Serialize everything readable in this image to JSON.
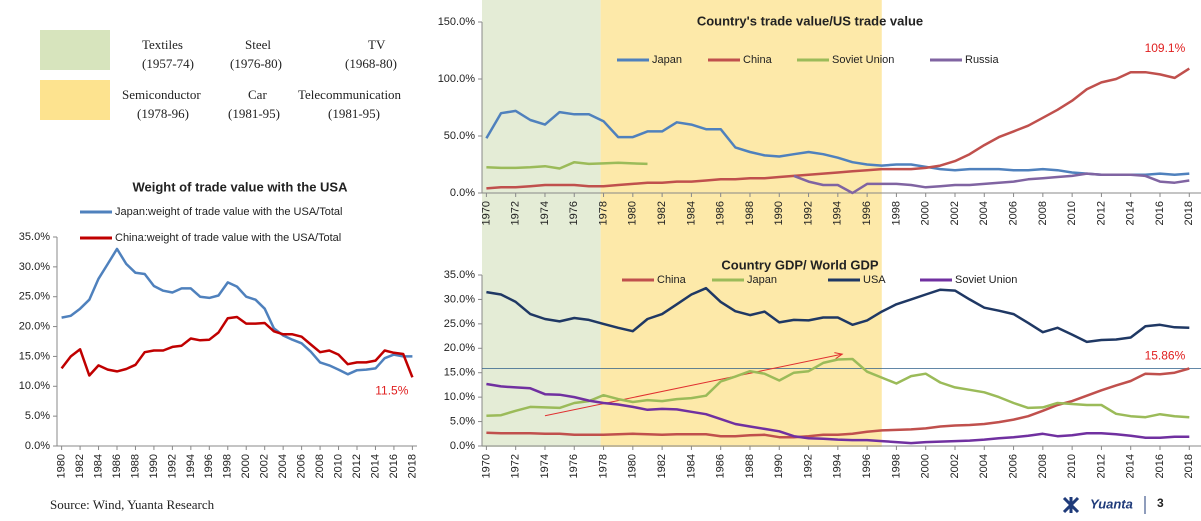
{
  "legend_boxes": [
    {
      "color": "#d7e4bd",
      "items": [
        {
          "name": "Textiles",
          "period": "(1957-74)"
        },
        {
          "name": "Steel",
          "period": "(1976-80)"
        },
        {
          "name": "TV",
          "period": "(1968-80)"
        }
      ]
    },
    {
      "color": "#fde38f",
      "items": [
        {
          "name": "Semiconductor",
          "period": "(1978-96)"
        },
        {
          "name": "Car",
          "period": "(1981-95)"
        },
        {
          "name": "Telecommunication",
          "period": "(1981-95)"
        }
      ]
    }
  ],
  "chart_data": [
    {
      "type": "line",
      "title": "Weight of trade value with the USA",
      "x": [
        1980,
        1981,
        1982,
        1983,
        1984,
        1985,
        1986,
        1987,
        1988,
        1989,
        1990,
        1991,
        1992,
        1993,
        1994,
        1995,
        1996,
        1997,
        1998,
        1999,
        2000,
        2001,
        2002,
        2003,
        2004,
        2005,
        2006,
        2007,
        2008,
        2009,
        2010,
        2011,
        2012,
        2013,
        2014,
        2015,
        2016,
        2017,
        2018
      ],
      "xlim": [
        1979.5,
        2018.5
      ],
      "xticks": [
        1980,
        1982,
        1984,
        1986,
        1988,
        1990,
        1992,
        1994,
        1996,
        1998,
        2000,
        2002,
        2004,
        2006,
        2008,
        2010,
        2012,
        2014,
        2016,
        2018
      ],
      "ylim": [
        0,
        35
      ],
      "yticks": [
        {
          "value": 0,
          "label": "0.0%"
        },
        {
          "value": 5,
          "label": "5.0%"
        },
        {
          "value": 10,
          "label": "10.0%"
        },
        {
          "value": 15,
          "label": "15.0%"
        },
        {
          "value": 20,
          "label": "20.0%"
        },
        {
          "value": 25,
          "label": "25.0%"
        },
        {
          "value": 30,
          "label": "30.0%"
        },
        {
          "value": 35,
          "label": "35.0%"
        }
      ],
      "series": [
        {
          "name": "Japan:weight of trade value with the USA/Total",
          "color": "#4f81bd",
          "values": [
            21.5,
            21.8,
            23,
            24.5,
            28,
            30.5,
            33,
            30.5,
            29,
            28.8,
            26.8,
            26,
            25.7,
            26.4,
            26.4,
            25,
            24.8,
            25.2,
            27.4,
            26.7,
            25,
            24.5,
            23,
            19.7,
            18.5,
            17.8,
            17.2,
            15.8,
            14,
            13.5,
            12.8,
            12,
            12.7,
            12.8,
            13,
            14.7,
            15.3,
            15,
            15
          ]
        },
        {
          "name": "China:weight of trade value with the USA/Total",
          "color": "#c00000",
          "values": [
            13,
            15,
            16.2,
            11.8,
            13.5,
            12.8,
            12.5,
            12.9,
            13.6,
            15.7,
            16,
            16,
            16.6,
            16.8,
            18,
            17.7,
            17.8,
            19,
            21.4,
            21.6,
            20.5,
            20.5,
            20.6,
            19.2,
            18.7,
            18.7,
            18.3,
            17,
            15.7,
            16,
            15.3,
            13.7,
            14,
            14,
            14.3,
            16,
            15.6,
            15.4,
            11.5
          ],
          "value_labels": [
            null,
            null,
            null,
            null,
            null,
            null,
            null,
            null,
            null,
            null,
            null,
            null,
            null,
            null,
            null,
            null,
            null,
            null,
            null,
            null,
            null,
            null,
            null,
            null,
            null,
            null,
            null,
            null,
            null,
            null,
            null,
            null,
            null,
            null,
            null,
            null,
            null,
            null,
            "11.5%"
          ]
        }
      ]
    },
    {
      "type": "line",
      "title": "Country's trade value/US trade value",
      "x": [
        1970,
        1971,
        1972,
        1973,
        1974,
        1975,
        1976,
        1977,
        1978,
        1979,
        1980,
        1981,
        1982,
        1983,
        1984,
        1985,
        1986,
        1987,
        1988,
        1989,
        1990,
        1991,
        1992,
        1993,
        1994,
        1995,
        1996,
        1997,
        1998,
        1999,
        2000,
        2001,
        2002,
        2003,
        2004,
        2005,
        2006,
        2007,
        2008,
        2009,
        2010,
        2011,
        2012,
        2013,
        2014,
        2015,
        2016,
        2017,
        2018
      ],
      "xlim": [
        1969.7,
        2018.8
      ],
      "xticks": [
        1970,
        1972,
        1974,
        1976,
        1978,
        1980,
        1982,
        1984,
        1986,
        1988,
        1990,
        1992,
        1994,
        1996,
        1998,
        2000,
        2002,
        2004,
        2006,
        2008,
        2010,
        2012,
        2014,
        2016,
        2018
      ],
      "ylim": [
        0,
        150
      ],
      "yticks": [
        {
          "value": 0,
          "label": "0.0%"
        },
        {
          "value": 50,
          "label": "50.0%"
        },
        {
          "value": 100,
          "label": "100.0%"
        },
        {
          "value": 150,
          "label": "150.0%"
        }
      ],
      "shaded_spans": [
        {
          "from": 1969.7,
          "to": 1977.8,
          "color": "#e4ecd6"
        },
        {
          "from": 1977.8,
          "to": 1997.0,
          "color": "#fde9a9"
        }
      ],
      "series": [
        {
          "name": "Japan",
          "color": "#4f81bd",
          "values": [
            48,
            70,
            72,
            64,
            60,
            71,
            69,
            69,
            63,
            49,
            49,
            54,
            54,
            62,
            60,
            56,
            56,
            40,
            36,
            33,
            32,
            34,
            36,
            34,
            31,
            27,
            25,
            24,
            25,
            25,
            23,
            21,
            20,
            21,
            21,
            21,
            20,
            20,
            21,
            20,
            18,
            17,
            16,
            16,
            16,
            16,
            17,
            16,
            17
          ]
        },
        {
          "name": "China",
          "color": "#c0504d",
          "values": [
            4,
            5,
            5,
            6,
            7,
            7,
            7,
            6,
            6,
            7,
            8,
            9,
            9,
            10,
            10,
            11,
            12,
            12,
            13,
            13,
            14,
            15,
            16,
            17,
            18,
            19,
            20,
            21,
            21,
            21,
            22,
            24,
            28,
            34,
            42,
            49,
            54,
            59,
            66,
            73,
            81,
            91,
            97,
            100,
            106,
            106,
            104,
            101,
            109.1
          ],
          "value_labels": [
            null,
            null,
            null,
            null,
            null,
            null,
            null,
            null,
            null,
            null,
            null,
            null,
            null,
            null,
            null,
            null,
            null,
            null,
            null,
            null,
            null,
            null,
            null,
            null,
            null,
            null,
            null,
            null,
            null,
            null,
            null,
            null,
            null,
            null,
            null,
            null,
            null,
            null,
            null,
            null,
            null,
            null,
            null,
            null,
            null,
            null,
            null,
            null,
            "109.1%"
          ]
        },
        {
          "name": "Soviet Union",
          "color": "#9bbb59",
          "values": [
            22.5,
            22,
            22,
            22.5,
            23.5,
            21.5,
            27,
            25.5,
            26,
            26.5,
            26,
            25.5,
            null,
            null,
            null,
            null,
            null,
            null,
            null,
            null,
            null,
            null,
            null,
            null,
            null,
            null,
            null,
            null,
            null,
            null,
            null,
            null,
            null,
            null,
            null,
            null,
            null,
            null,
            null,
            null,
            null,
            null,
            null,
            null,
            null,
            null,
            null,
            null,
            null
          ]
        },
        {
          "name": "Russia",
          "color": "#8064a2",
          "values": [
            null,
            null,
            null,
            null,
            null,
            null,
            null,
            null,
            null,
            null,
            null,
            null,
            null,
            null,
            null,
            null,
            null,
            null,
            null,
            null,
            null,
            15,
            10,
            7,
            7,
            0,
            8,
            8,
            8,
            7,
            5,
            6,
            7,
            7,
            8,
            9,
            10,
            12,
            13,
            14,
            15,
            17,
            16,
            16,
            16,
            15,
            10,
            9,
            11
          ]
        }
      ]
    },
    {
      "type": "line",
      "title": "Country GDP/ World GDP",
      "x": [
        1970,
        1971,
        1972,
        1973,
        1974,
        1975,
        1976,
        1977,
        1978,
        1979,
        1980,
        1981,
        1982,
        1983,
        1984,
        1985,
        1986,
        1987,
        1988,
        1989,
        1990,
        1991,
        1992,
        1993,
        1994,
        1995,
        1996,
        1997,
        1998,
        1999,
        2000,
        2001,
        2002,
        2003,
        2004,
        2005,
        2006,
        2007,
        2008,
        2009,
        2010,
        2011,
        2012,
        2013,
        2014,
        2015,
        2016,
        2017,
        2018
      ],
      "xlim": [
        1969.7,
        2018.8
      ],
      "xticks": [
        1970,
        1972,
        1974,
        1976,
        1978,
        1980,
        1982,
        1984,
        1986,
        1988,
        1990,
        1992,
        1994,
        1996,
        1998,
        2000,
        2002,
        2004,
        2006,
        2008,
        2010,
        2012,
        2014,
        2016,
        2018
      ],
      "ylim": [
        0,
        35
      ],
      "yticks": [
        {
          "value": 0,
          "label": "0.0%"
        },
        {
          "value": 5,
          "label": "5.0%"
        },
        {
          "value": 10,
          "label": "10.0%"
        },
        {
          "value": 15,
          "label": "15.0%"
        },
        {
          "value": 20,
          "label": "20.0%"
        },
        {
          "value": 25,
          "label": "25.0%"
        },
        {
          "value": 30,
          "label": "30.0%"
        },
        {
          "value": 35,
          "label": "35.0%"
        }
      ],
      "shaded_spans": [
        {
          "from": 1969.7,
          "to": 1977.8,
          "color": "#e4ecd6"
        },
        {
          "from": 1977.8,
          "to": 1997.0,
          "color": "#fde9a9"
        }
      ],
      "reference_line": 15.86,
      "arrow": {
        "x": [
          1974,
          1994.3
        ],
        "y": [
          6.2,
          18.8
        ],
        "color": "#e03030"
      },
      "series": [
        {
          "name": "China",
          "color": "#c0504d",
          "values": [
            2.7,
            2.6,
            2.6,
            2.6,
            2.5,
            2.5,
            2.3,
            2.3,
            2.3,
            2.4,
            2.5,
            2.4,
            2.3,
            2.4,
            2.4,
            2.4,
            2,
            2,
            2.2,
            2.3,
            1.8,
            1.8,
            2,
            2.3,
            2.3,
            2.5,
            2.9,
            3.2,
            3.3,
            3.4,
            3.6,
            4,
            4.2,
            4.3,
            4.5,
            4.9,
            5.4,
            6.1,
            7.2,
            8.4,
            9.2,
            10.3,
            11.4,
            12.4,
            13.3,
            14.8,
            14.7,
            15,
            15.86
          ],
          "value_labels": [
            null,
            null,
            null,
            null,
            null,
            null,
            null,
            null,
            null,
            null,
            null,
            null,
            null,
            null,
            null,
            null,
            null,
            null,
            null,
            null,
            null,
            null,
            null,
            null,
            null,
            null,
            null,
            null,
            null,
            null,
            null,
            null,
            null,
            null,
            null,
            null,
            null,
            null,
            null,
            null,
            null,
            null,
            null,
            null,
            null,
            null,
            null,
            null,
            "15.86%"
          ]
        },
        {
          "name": "Japan",
          "color": "#9bbb59",
          "values": [
            6.2,
            6.3,
            7.2,
            8,
            7.9,
            7.8,
            8.8,
            9.2,
            10.4,
            9.6,
            9,
            9.4,
            9.2,
            9.6,
            9.8,
            10.3,
            13.2,
            14.2,
            15.3,
            14.8,
            13.4,
            15,
            15.3,
            17,
            17.7,
            17.8,
            15.2,
            14,
            12.8,
            14.3,
            14.8,
            13,
            12,
            11.5,
            11,
            10,
            8.8,
            7.8,
            7.9,
            8.8,
            8.6,
            8.4,
            8.4,
            6.6,
            6.1,
            5.9,
            6.5,
            6.1,
            5.9
          ]
        },
        {
          "name": "USA",
          "color": "#1f3864",
          "values": [
            31.5,
            31,
            29.5,
            27,
            26,
            25.5,
            26.2,
            25.8,
            25,
            24.2,
            23.5,
            26,
            27,
            29,
            31,
            32.3,
            29.5,
            27.6,
            26.8,
            27.5,
            25.3,
            25.8,
            25.7,
            26.3,
            26.3,
            24.8,
            25.7,
            27.5,
            29,
            30,
            31,
            32,
            31.8,
            30,
            28.3,
            27.7,
            27,
            25.2,
            23.3,
            24.2,
            22.8,
            21.3,
            21.7,
            21.8,
            22.2,
            24.5,
            24.8,
            24.3,
            24.2
          ]
        },
        {
          "name": "Soviet Union",
          "color": "#7030a0",
          "values": [
            12.7,
            12.2,
            12,
            11.8,
            10.6,
            10.5,
            10,
            9.3,
            8.8,
            8.5,
            8,
            7.4,
            7.6,
            7.5,
            7,
            6.5,
            5.5,
            4.5,
            4,
            3.5,
            3,
            2,
            1.6,
            1.5,
            1.3,
            1.2,
            1.2,
            1,
            0.8,
            0.6,
            0.8,
            0.9,
            1,
            1.1,
            1.3,
            1.6,
            1.8,
            2.1,
            2.5,
            2,
            2.2,
            2.6,
            2.6,
            2.4,
            2.1,
            1.7,
            1.7,
            1.9,
            1.9
          ]
        }
      ]
    }
  ],
  "footer": {
    "source": "Source:  Wind, Yuanta Research",
    "brand": "Yuanta",
    "page": 3
  }
}
